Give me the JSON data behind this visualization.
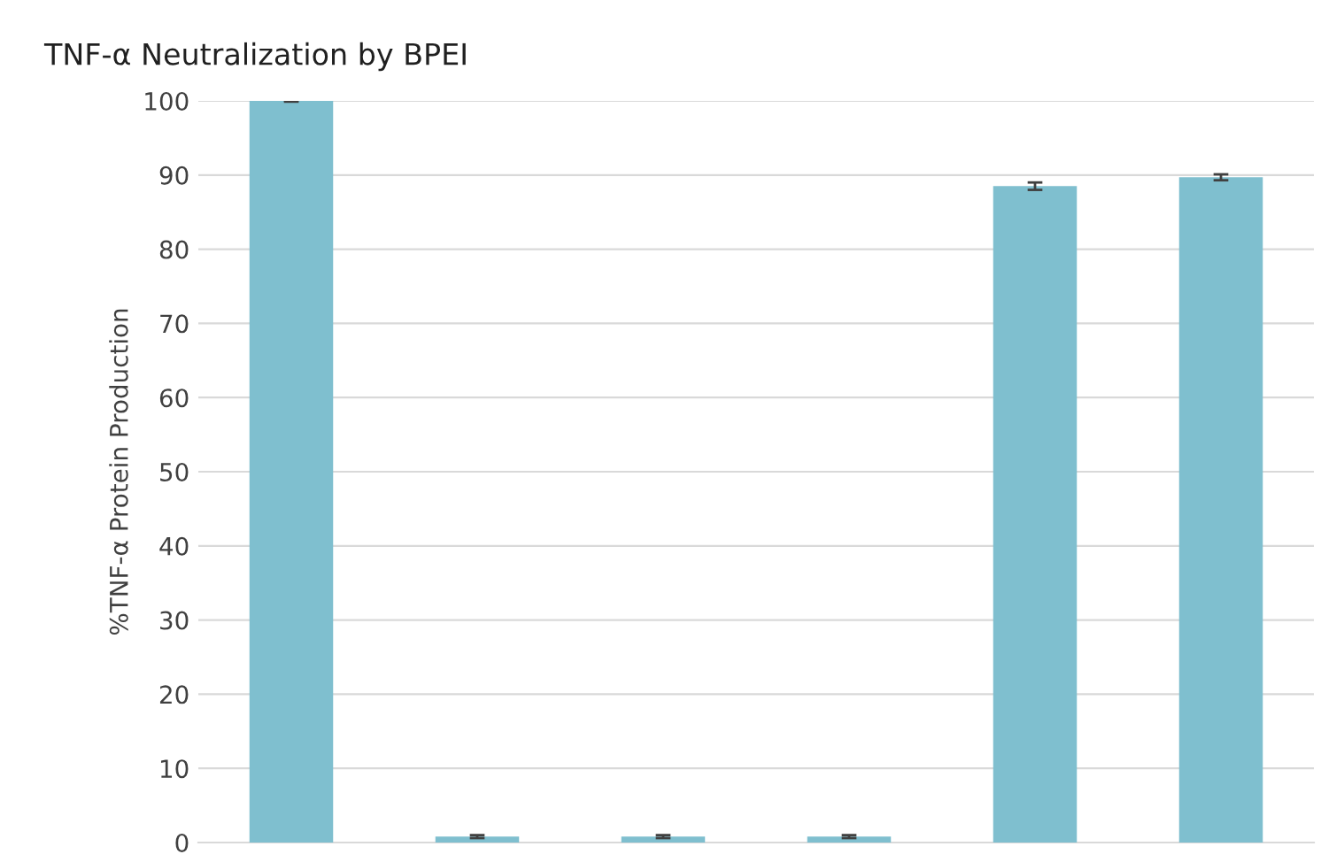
{
  "chart_data": {
    "type": "bar",
    "title": "TNF-α Neutralization by BPEI",
    "ylabel": "%TNF-α Protein Production",
    "categories": [
      null,
      null,
      null,
      null,
      null,
      null
    ],
    "values": [
      100,
      0.8,
      0.8,
      0.8,
      88.5,
      89.7
    ],
    "errors": [
      0.1,
      0.2,
      0.2,
      0.2,
      0.5,
      0.4
    ],
    "color": "#7fbfcf",
    "ylim": [
      0,
      100
    ],
    "yticks": [
      0,
      10,
      20,
      30,
      40,
      50,
      60,
      70,
      80,
      90,
      100
    ],
    "grid": "y"
  }
}
